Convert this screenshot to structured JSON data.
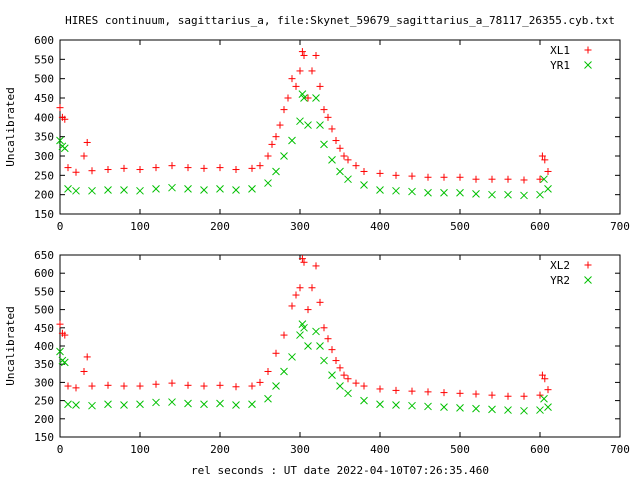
{
  "figure_title": "HIRES continuum, sagittarius_a, file:Skynet_59679_sagittarius_a_78117_26355.cyb.txt",
  "shared_xlabel": "rel seconds : UT date 2022-04-10T07:26:35.460",
  "colors": {
    "red": "#ff0000",
    "green": "#00c000",
    "axis": "#000000"
  },
  "chart_data": [
    {
      "type": "scatter",
      "title": "",
      "xlabel": "",
      "ylabel": "Uncalibrated",
      "xlim": [
        0,
        700
      ],
      "ylim": [
        150,
        600
      ],
      "xticks": [
        0,
        100,
        200,
        300,
        400,
        500,
        600,
        700
      ],
      "yticks": [
        150,
        200,
        250,
        300,
        350,
        400,
        450,
        500,
        550,
        600
      ],
      "legend_position": "top-right",
      "series": [
        {
          "name": "XL1",
          "color": "#ff0000",
          "marker": "plus",
          "points": [
            [
              0,
              425
            ],
            [
              3,
              400
            ],
            [
              6,
              395
            ],
            [
              10,
              270
            ],
            [
              20,
              258
            ],
            [
              30,
              300
            ],
            [
              34,
              335
            ],
            [
              40,
              262
            ],
            [
              60,
              265
            ],
            [
              80,
              268
            ],
            [
              100,
              265
            ],
            [
              120,
              270
            ],
            [
              140,
              275
            ],
            [
              160,
              270
            ],
            [
              180,
              268
            ],
            [
              200,
              270
            ],
            [
              220,
              265
            ],
            [
              240,
              268
            ],
            [
              250,
              275
            ],
            [
              260,
              300
            ],
            [
              265,
              330
            ],
            [
              270,
              350
            ],
            [
              275,
              380
            ],
            [
              280,
              420
            ],
            [
              285,
              450
            ],
            [
              290,
              500
            ],
            [
              295,
              480
            ],
            [
              300,
              520
            ],
            [
              303,
              570
            ],
            [
              305,
              560
            ],
            [
              310,
              450
            ],
            [
              315,
              520
            ],
            [
              320,
              560
            ],
            [
              325,
              480
            ],
            [
              330,
              420
            ],
            [
              335,
              400
            ],
            [
              340,
              370
            ],
            [
              345,
              340
            ],
            [
              350,
              320
            ],
            [
              355,
              300
            ],
            [
              360,
              290
            ],
            [
              370,
              275
            ],
            [
              380,
              260
            ],
            [
              400,
              255
            ],
            [
              420,
              250
            ],
            [
              440,
              248
            ],
            [
              460,
              245
            ],
            [
              480,
              245
            ],
            [
              500,
              245
            ],
            [
              520,
              240
            ],
            [
              540,
              240
            ],
            [
              560,
              240
            ],
            [
              580,
              238
            ],
            [
              600,
              240
            ],
            [
              603,
              300
            ],
            [
              606,
              290
            ],
            [
              610,
              260
            ]
          ]
        },
        {
          "name": "YR1",
          "color": "#00c000",
          "marker": "cross",
          "points": [
            [
              0,
              340
            ],
            [
              3,
              325
            ],
            [
              6,
              320
            ],
            [
              10,
              215
            ],
            [
              20,
              210
            ],
            [
              40,
              210
            ],
            [
              60,
              212
            ],
            [
              80,
              212
            ],
            [
              100,
              210
            ],
            [
              120,
              215
            ],
            [
              140,
              218
            ],
            [
              160,
              215
            ],
            [
              180,
              212
            ],
            [
              200,
              215
            ],
            [
              220,
              212
            ],
            [
              240,
              215
            ],
            [
              260,
              230
            ],
            [
              270,
              260
            ],
            [
              280,
              300
            ],
            [
              290,
              340
            ],
            [
              300,
              390
            ],
            [
              303,
              460
            ],
            [
              305,
              450
            ],
            [
              310,
              380
            ],
            [
              320,
              450
            ],
            [
              325,
              380
            ],
            [
              330,
              330
            ],
            [
              340,
              290
            ],
            [
              350,
              260
            ],
            [
              360,
              240
            ],
            [
              380,
              225
            ],
            [
              400,
              212
            ],
            [
              420,
              210
            ],
            [
              440,
              208
            ],
            [
              460,
              205
            ],
            [
              480,
              205
            ],
            [
              500,
              205
            ],
            [
              520,
              202
            ],
            [
              540,
              200
            ],
            [
              560,
              200
            ],
            [
              580,
              198
            ],
            [
              600,
              200
            ],
            [
              605,
              240
            ],
            [
              610,
              215
            ]
          ]
        }
      ]
    },
    {
      "type": "scatter",
      "title": "",
      "xlabel": "rel seconds : UT date 2022-04-10T07:26:35.460",
      "ylabel": "Uncalibrated",
      "xlim": [
        0,
        700
      ],
      "ylim": [
        150,
        650
      ],
      "xticks": [
        0,
        100,
        200,
        300,
        400,
        500,
        600,
        700
      ],
      "yticks": [
        150,
        200,
        250,
        300,
        350,
        400,
        450,
        500,
        550,
        600,
        650
      ],
      "legend_position": "top-right",
      "series": [
        {
          "name": "XL2",
          "color": "#ff0000",
          "marker": "plus",
          "points": [
            [
              0,
              460
            ],
            [
              3,
              435
            ],
            [
              6,
              430
            ],
            [
              10,
              290
            ],
            [
              20,
              285
            ],
            [
              30,
              330
            ],
            [
              34,
              370
            ],
            [
              40,
              290
            ],
            [
              60,
              292
            ],
            [
              80,
              290
            ],
            [
              100,
              290
            ],
            [
              120,
              295
            ],
            [
              140,
              298
            ],
            [
              160,
              292
            ],
            [
              180,
              290
            ],
            [
              200,
              292
            ],
            [
              220,
              288
            ],
            [
              240,
              290
            ],
            [
              250,
              300
            ],
            [
              260,
              330
            ],
            [
              270,
              380
            ],
            [
              280,
              430
            ],
            [
              290,
              510
            ],
            [
              295,
              540
            ],
            [
              300,
              560
            ],
            [
              303,
              640
            ],
            [
              305,
              630
            ],
            [
              310,
              500
            ],
            [
              315,
              560
            ],
            [
              320,
              620
            ],
            [
              325,
              520
            ],
            [
              330,
              450
            ],
            [
              335,
              420
            ],
            [
              340,
              390
            ],
            [
              345,
              360
            ],
            [
              350,
              340
            ],
            [
              355,
              320
            ],
            [
              360,
              310
            ],
            [
              370,
              298
            ],
            [
              380,
              290
            ],
            [
              400,
              282
            ],
            [
              420,
              278
            ],
            [
              440,
              276
            ],
            [
              460,
              274
            ],
            [
              480,
              272
            ],
            [
              500,
              270
            ],
            [
              520,
              268
            ],
            [
              540,
              265
            ],
            [
              560,
              262
            ],
            [
              580,
              262
            ],
            [
              600,
              265
            ],
            [
              603,
              320
            ],
            [
              606,
              310
            ],
            [
              610,
              280
            ]
          ]
        },
        {
          "name": "YR2",
          "color": "#00c000",
          "marker": "cross",
          "points": [
            [
              0,
              385
            ],
            [
              3,
              360
            ],
            [
              6,
              355
            ],
            [
              10,
              240
            ],
            [
              20,
              238
            ],
            [
              40,
              236
            ],
            [
              60,
              240
            ],
            [
              80,
              238
            ],
            [
              100,
              240
            ],
            [
              120,
              245
            ],
            [
              140,
              246
            ],
            [
              160,
              242
            ],
            [
              180,
              240
            ],
            [
              200,
              242
            ],
            [
              220,
              238
            ],
            [
              240,
              240
            ],
            [
              260,
              255
            ],
            [
              270,
              290
            ],
            [
              280,
              330
            ],
            [
              290,
              370
            ],
            [
              300,
              430
            ],
            [
              303,
              460
            ],
            [
              305,
              450
            ],
            [
              310,
              400
            ],
            [
              320,
              440
            ],
            [
              325,
              400
            ],
            [
              330,
              360
            ],
            [
              340,
              320
            ],
            [
              350,
              290
            ],
            [
              360,
              270
            ],
            [
              380,
              250
            ],
            [
              400,
              240
            ],
            [
              420,
              238
            ],
            [
              440,
              236
            ],
            [
              460,
              234
            ],
            [
              480,
              232
            ],
            [
              500,
              230
            ],
            [
              520,
              228
            ],
            [
              540,
              226
            ],
            [
              560,
              224
            ],
            [
              580,
              222
            ],
            [
              600,
              224
            ],
            [
              605,
              255
            ],
            [
              610,
              232
            ]
          ]
        }
      ]
    }
  ]
}
